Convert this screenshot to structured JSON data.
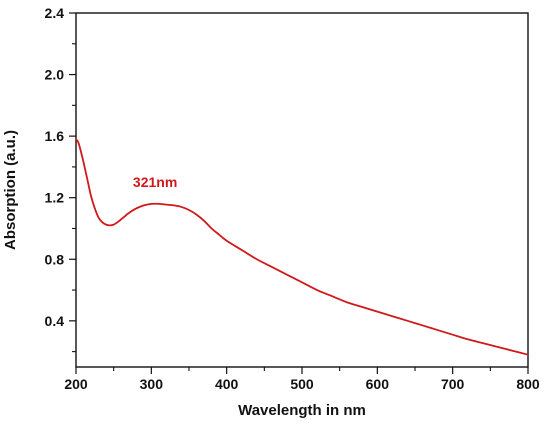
{
  "chart_data": {
    "type": "line",
    "title": "",
    "xlabel": "Wavelength in nm",
    "ylabel": "Absorption (a.u.)",
    "xlim": [
      200,
      800
    ],
    "ylim": [
      0.1,
      2.4
    ],
    "x_ticks": [
      200,
      300,
      400,
      500,
      600,
      700,
      800
    ],
    "y_ticks": [
      0.4,
      0.8,
      1.2,
      1.6,
      2.0,
      2.4
    ],
    "x_tick_labels": [
      "200",
      "300",
      "400",
      "500",
      "600",
      "700",
      "800"
    ],
    "y_tick_labels": [
      "0.4",
      "0.8",
      "1.2",
      "1.6",
      "2.0",
      "2.4"
    ],
    "grid": false,
    "legend": "none",
    "annotation": {
      "text": "321nm",
      "x": 305,
      "y": 1.27,
      "color": "#d0191c"
    },
    "series": [
      {
        "color": "#d0191c",
        "x": [
          200,
          203,
          206,
          210,
          215,
          220,
          225,
          230,
          235,
          240,
          245,
          250,
          255,
          260,
          265,
          270,
          280,
          290,
          300,
          310,
          320,
          330,
          340,
          350,
          360,
          370,
          380,
          390,
          400,
          420,
          440,
          460,
          480,
          500,
          520,
          540,
          560,
          580,
          600,
          620,
          640,
          660,
          680,
          700,
          720,
          740,
          760,
          780,
          800
        ],
        "y": [
          1.58,
          1.56,
          1.51,
          1.43,
          1.32,
          1.21,
          1.13,
          1.07,
          1.04,
          1.025,
          1.02,
          1.025,
          1.04,
          1.06,
          1.08,
          1.1,
          1.13,
          1.15,
          1.16,
          1.16,
          1.155,
          1.15,
          1.14,
          1.12,
          1.09,
          1.05,
          1.0,
          0.96,
          0.92,
          0.86,
          0.8,
          0.75,
          0.7,
          0.65,
          0.6,
          0.56,
          0.52,
          0.49,
          0.46,
          0.43,
          0.4,
          0.37,
          0.34,
          0.31,
          0.28,
          0.255,
          0.23,
          0.205,
          0.18
        ]
      }
    ]
  }
}
